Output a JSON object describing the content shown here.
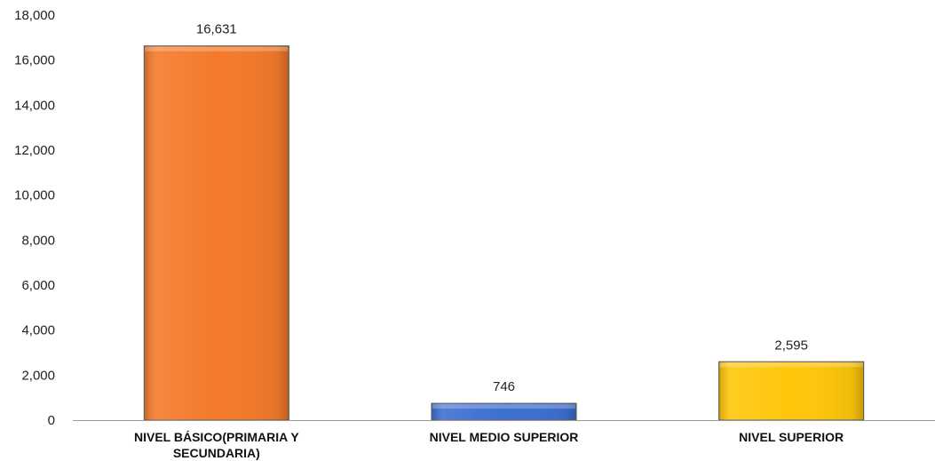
{
  "chart_data": {
    "type": "bar",
    "categories": [
      [
        "NIVEL BÁSICO(PRIMARIA Y",
        "SECUNDARIA)"
      ],
      [
        "NIVEL MEDIO SUPERIOR"
      ],
      [
        "NIVEL SUPERIOR"
      ]
    ],
    "values": [
      16631,
      746,
      2595
    ],
    "data_labels": [
      "16,631",
      "746",
      "2,595"
    ],
    "colors": [
      "#f47a2a",
      "#3d6fd1",
      "#ffc60a"
    ],
    "ylim": [
      0,
      18000
    ],
    "yticks": [
      0,
      2000,
      4000,
      6000,
      8000,
      10000,
      12000,
      14000,
      16000,
      18000
    ],
    "ytick_labels": [
      "0",
      "2,000",
      "4,000",
      "6,000",
      "8,000",
      "10,000",
      "12,000",
      "14,000",
      "16,000",
      "18,000"
    ],
    "grid": false,
    "legend": "none"
  }
}
